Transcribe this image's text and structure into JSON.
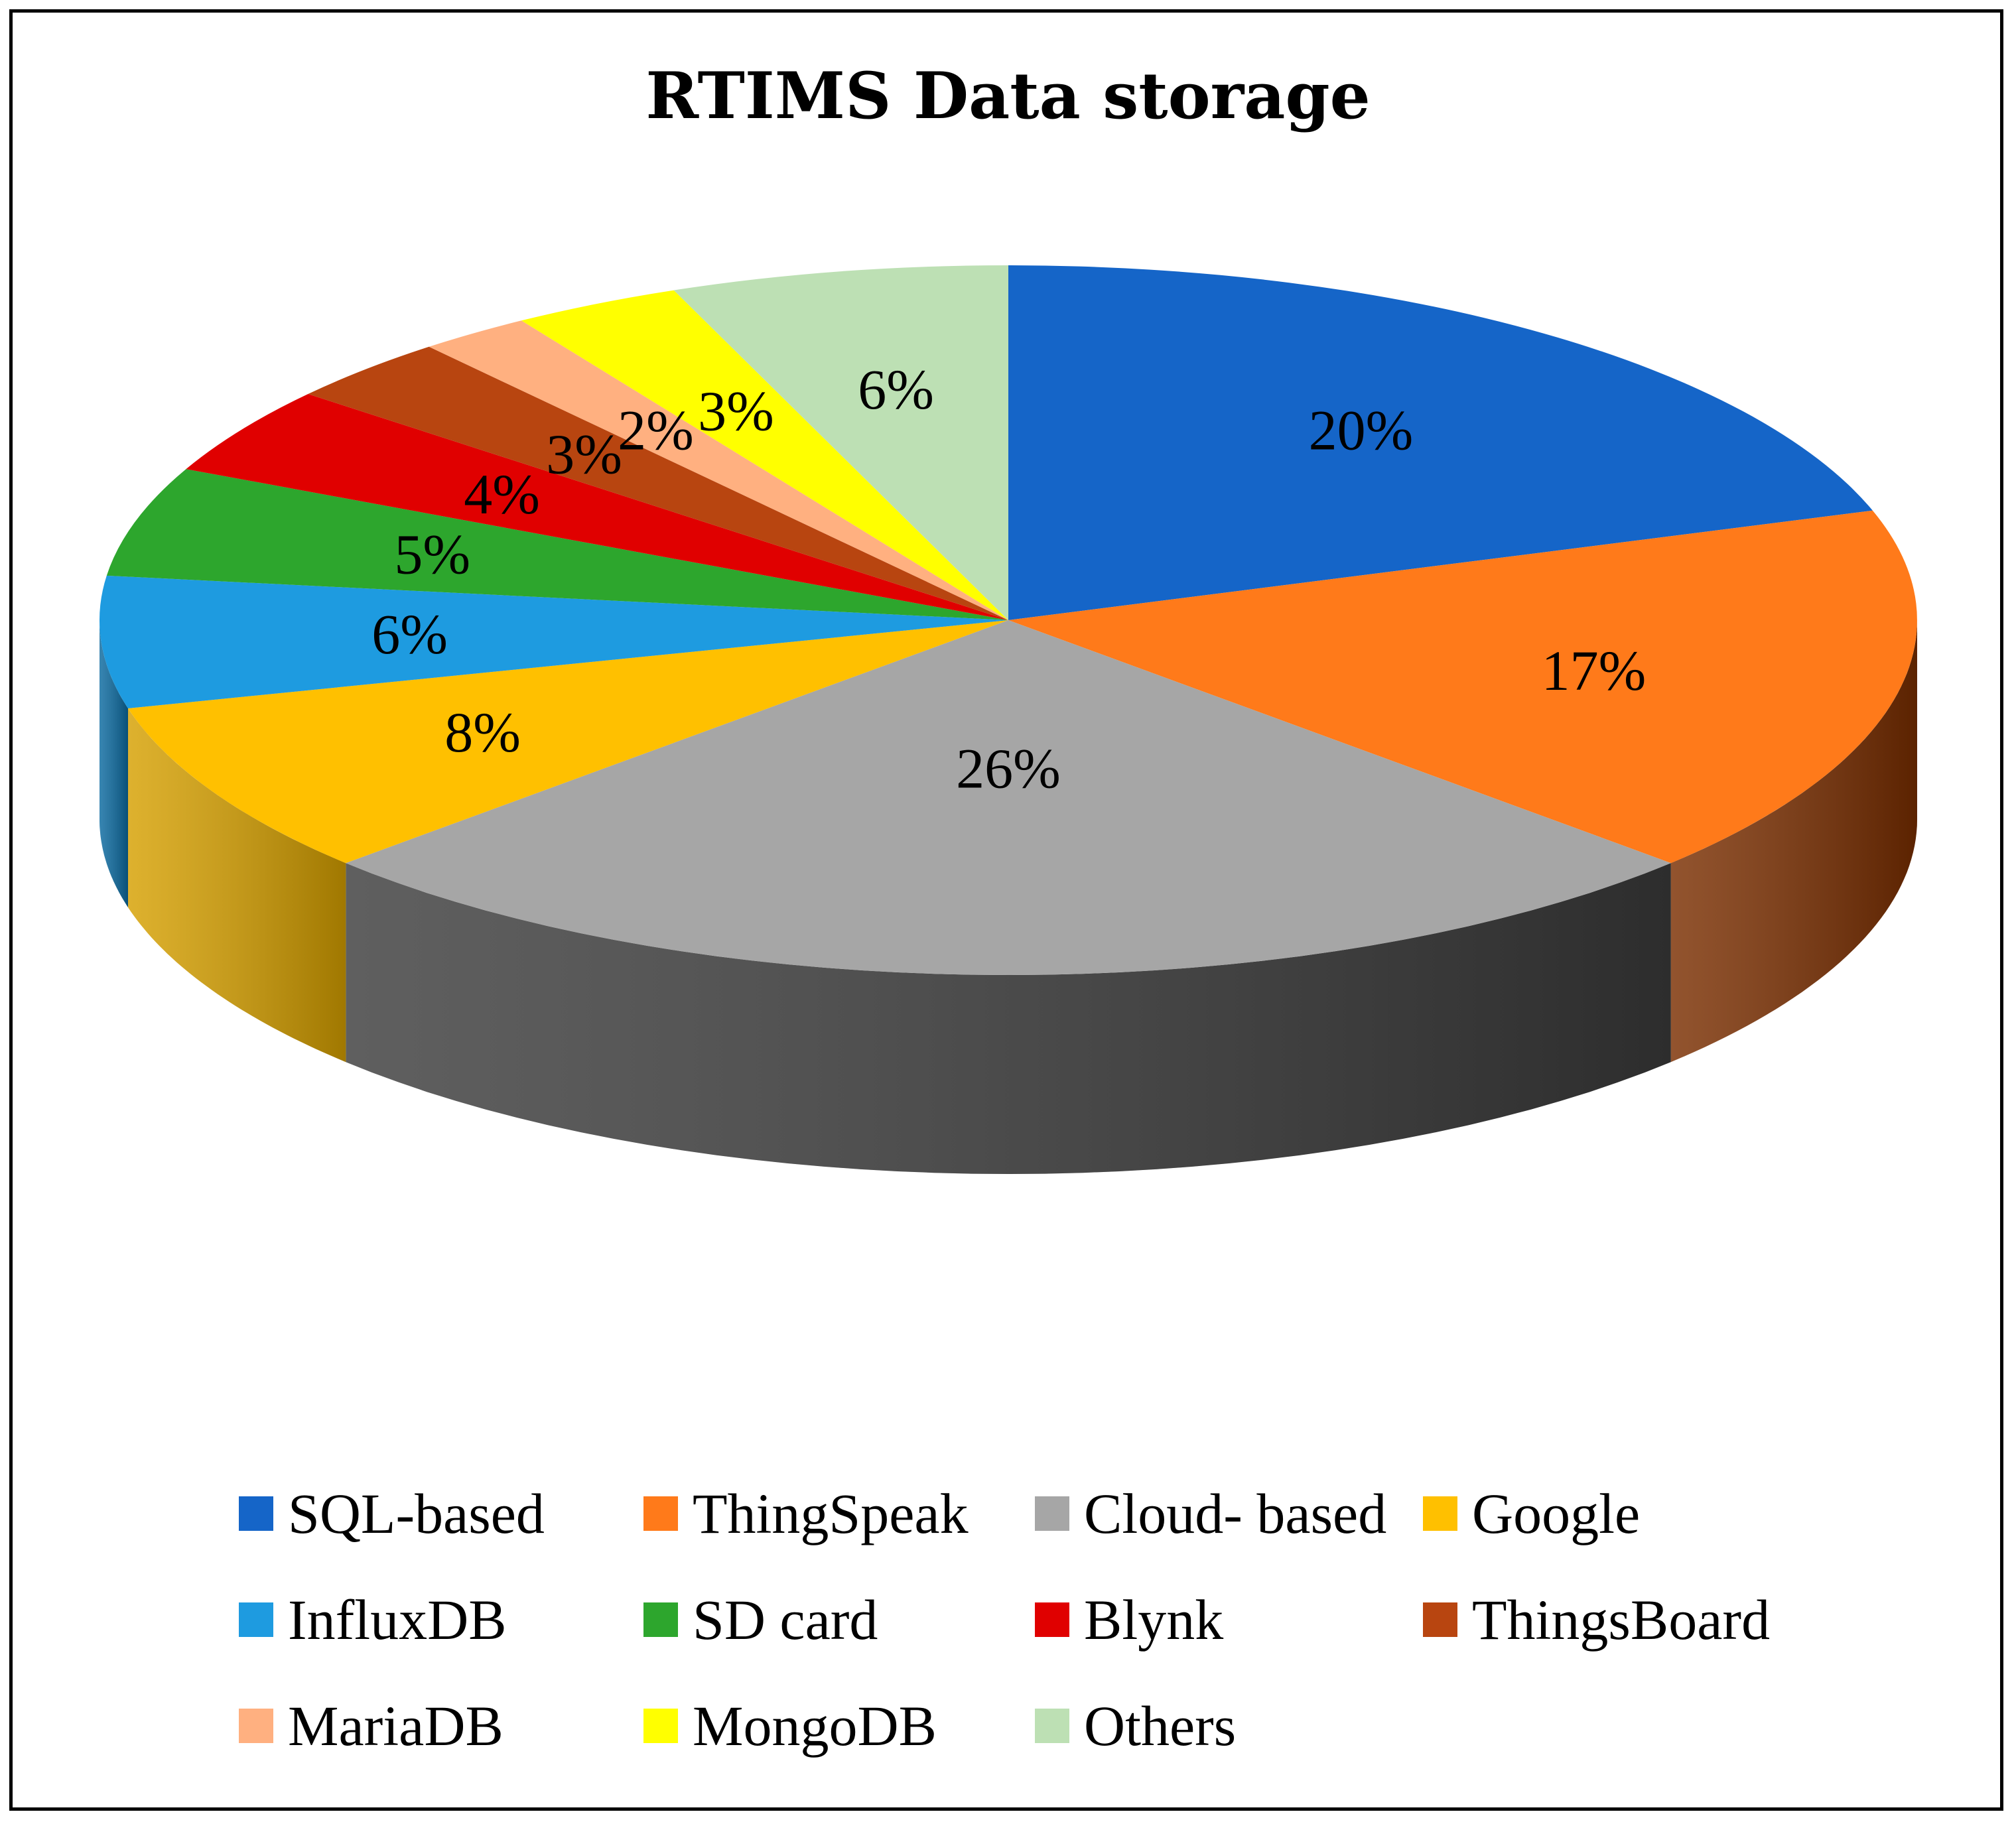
{
  "chart_data": {
    "type": "pie",
    "title": "RTIMS Data storage",
    "categories": [
      "SQL-based",
      "ThingSpeak",
      "Cloud- based",
      "Google",
      "InfluxDB",
      "SD card",
      "Blynk",
      "ThingsBoard",
      "MariaDB",
      "MongoDB",
      "Others"
    ],
    "values": [
      20,
      17,
      26,
      8,
      6,
      5,
      4,
      3,
      2,
      3,
      6
    ],
    "labels": [
      "20%",
      "17%",
      "26%",
      "8%",
      "6%",
      "5%",
      "4%",
      "3%",
      "2%",
      "3%",
      "6%"
    ],
    "colors": [
      "#1565c8",
      "#ff7a1a",
      "#a6a6a6",
      "#ffc000",
      "#1e9be0",
      "#2da62d",
      "#e00000",
      "#b84510",
      "#ffb080",
      "#ffff00",
      "#bde0b4"
    ],
    "side_colors": [
      "#0b3f80",
      "#7a2e00",
      "#3c3c3c",
      "#d6a000",
      "#0b6aa0",
      "#1d701d",
      "#900000",
      "#7a2a08",
      "#cc8050",
      "#c8c800",
      "#8ab080"
    ],
    "legend_position": "bottom",
    "style": "3d-pie"
  }
}
